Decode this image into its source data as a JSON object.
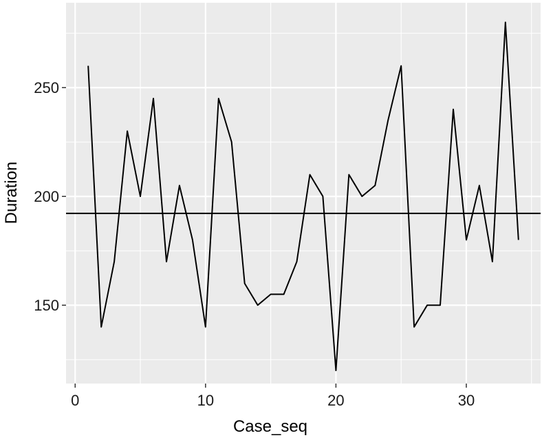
{
  "chart_data": {
    "type": "line",
    "xlabel": "Case_seq",
    "ylabel": "Duration",
    "xlim": [
      -0.7,
      35.7
    ],
    "ylim": [
      114,
      289
    ],
    "x_ticks": [
      0,
      10,
      20,
      30
    ],
    "x_tick_labels": [
      "0",
      "10",
      "20",
      "30"
    ],
    "x_minor_ticks": [
      5,
      15,
      25,
      35
    ],
    "y_ticks": [
      150,
      200,
      250
    ],
    "y_tick_labels": [
      "150",
      "200",
      "250"
    ],
    "y_minor_ticks": [
      125,
      175,
      225,
      275
    ],
    "grid": true,
    "panel_background": "#ebebeb",
    "grid_color": "#ffffff",
    "line_color": "#000000",
    "series": [
      {
        "x": [
          1,
          2,
          3,
          4,
          5,
          6,
          7,
          8,
          9,
          10,
          11,
          12,
          13,
          14,
          15,
          16,
          17,
          18,
          19,
          20,
          21,
          22,
          23,
          24,
          25,
          26,
          27,
          28,
          29,
          30,
          31,
          32,
          33,
          34
        ],
        "values": [
          260,
          140,
          170,
          230,
          200,
          245,
          170,
          205,
          180,
          140,
          245,
          225,
          160,
          150,
          155,
          155,
          170,
          210,
          200,
          120,
          210,
          200,
          205,
          235,
          260,
          140,
          150,
          150,
          240,
          180,
          205,
          170,
          280,
          180
        ]
      }
    ],
    "reference_line": {
      "orientation": "horizontal",
      "y": 192.2
    }
  }
}
